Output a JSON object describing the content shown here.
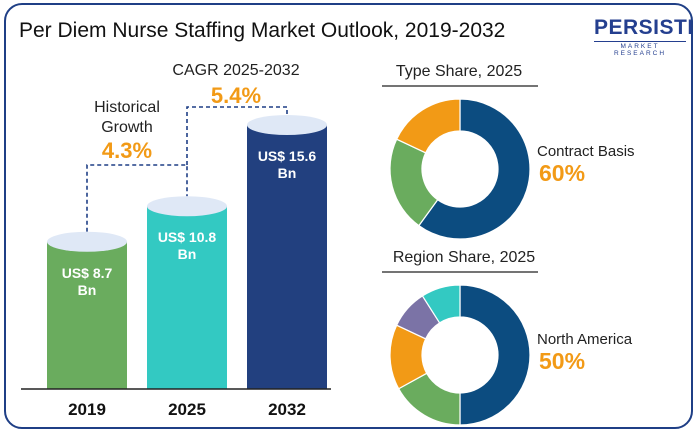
{
  "header": {
    "title": "Per Diem Nurse Staffing Market Outlook, 2019-2032"
  },
  "logo": {
    "brand": "PERSISTENCE",
    "tagline": "MARKET RESEARCH"
  },
  "annotations": {
    "historical_label": "Historical Growth",
    "historical_value": "4.3%",
    "cagr_label": "CAGR 2025-2032",
    "cagr_value": "5.4%"
  },
  "chart_data": [
    {
      "type": "bar",
      "categories": [
        "2019",
        "2025",
        "2032"
      ],
      "values": [
        8.7,
        10.8,
        15.6
      ],
      "value_labels": [
        "US$ 8.7\nBn",
        "US$ 10.8\nBn",
        "US$ 15.6\nBn"
      ],
      "colors": [
        "#6aac5e",
        "#33c9c2",
        "#22407f"
      ],
      "title": "",
      "xlabel": "",
      "ylabel": "",
      "grid": false
    },
    {
      "type": "pie",
      "variant": "donut",
      "title": "Type Share, 2025",
      "highlight_label": "Contract Basis",
      "highlight_value": "60%",
      "slices": [
        {
          "label": "Contract Basis",
          "value": 60,
          "color": "#0c4c80"
        },
        {
          "label": "",
          "value": 22,
          "color": "#6aac5e"
        },
        {
          "label": "",
          "value": 18,
          "color": "#f29a16"
        }
      ]
    },
    {
      "type": "pie",
      "variant": "donut",
      "title": "Region Share, 2025",
      "highlight_label": "North America",
      "highlight_value": "50%",
      "slices": [
        {
          "label": "North America",
          "value": 50,
          "color": "#0c4c80"
        },
        {
          "label": "",
          "value": 17,
          "color": "#6aac5e"
        },
        {
          "label": "",
          "value": 15,
          "color": "#f29a16"
        },
        {
          "label": "",
          "value": 9,
          "color": "#7b73a6"
        },
        {
          "label": "",
          "value": 9,
          "color": "#33c9c2"
        }
      ]
    }
  ],
  "colors": {
    "border": "#1f3f86",
    "accent": "#f29a16",
    "bar_top": "#dfe8f6"
  }
}
